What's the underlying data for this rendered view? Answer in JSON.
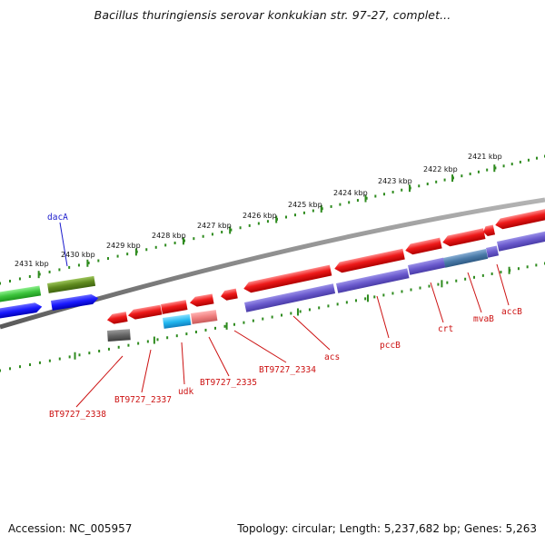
{
  "title": "Bacillus thuringiensis serovar konkukian str. 97-27, complet...",
  "footer": {
    "accession": "Accession: NC_005957",
    "topology": "Topology: circular; Length: 5,237,682 bp; Genes: 5,263"
  },
  "scale_labels": [
    "2431 kbp",
    "2430 kbp",
    "2429 kbp",
    "2428 kbp",
    "2427 kbp",
    "2426 kbp",
    "2425 kbp",
    "2424 kbp",
    "2423 kbp",
    "2422 kbp",
    "2421 kbp"
  ],
  "gene_labels": {
    "dacA": "dacA",
    "bt2338": "BT9727_2338",
    "bt2337": "BT9727_2337",
    "udk": "udk",
    "bt2335": "BT9727_2335",
    "bt2334": "BT9727_2334",
    "acs": "acs",
    "pccB": "pccB",
    "crt": "crt",
    "mvaB": "mvaB",
    "accB": "accB"
  },
  "colors": {
    "backbone": "#8a8a8a",
    "scale": "#2e8b1e",
    "forward_label": "#1a1acc",
    "reverse_label": "#cc1111",
    "gene_red": "#e81212",
    "gene_purple": "#6a5acd",
    "gene_green": "#3cc43c",
    "gene_olive": "#5f8a1e",
    "gene_blue": "#1a1aff",
    "gene_cyan": "#22b8f0",
    "gene_pink": "#f08080",
    "gene_gray": "#666666",
    "gene_steel": "#4a7aa8"
  }
}
